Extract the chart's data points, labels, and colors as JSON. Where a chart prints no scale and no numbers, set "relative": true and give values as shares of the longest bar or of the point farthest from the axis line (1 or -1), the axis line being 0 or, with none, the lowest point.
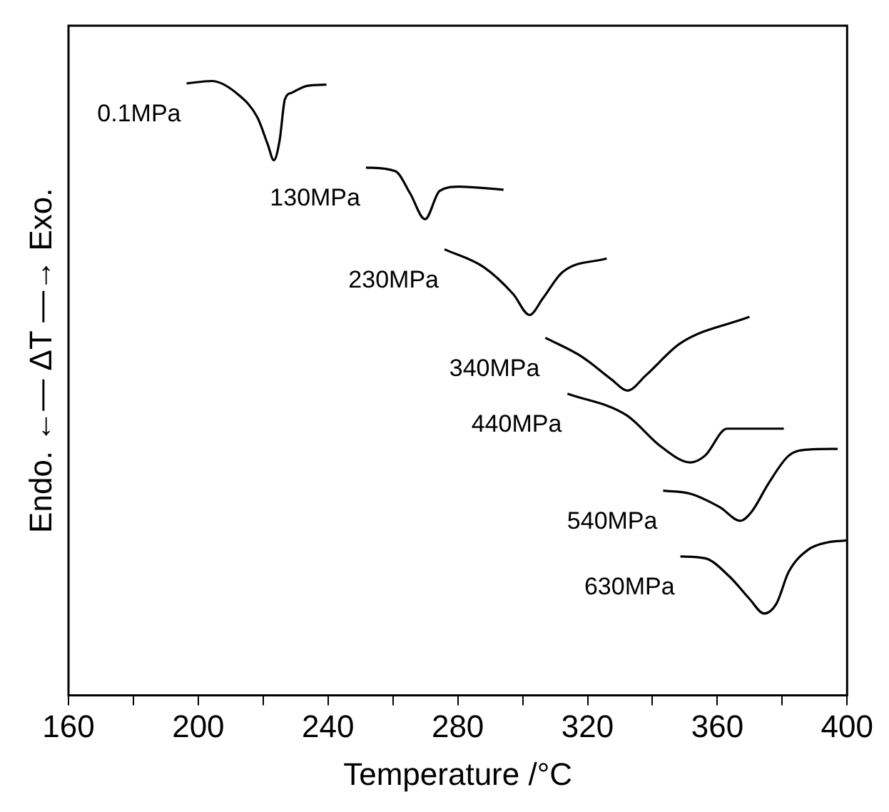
{
  "chart_data": {
    "type": "line",
    "relative": true,
    "xlabel": "Temperature /°C",
    "ylabel": "Endo. ←— ΔT —→ Exo.",
    "xlim": [
      160,
      400
    ],
    "xticks": [
      160,
      {
        "value": 180,
        "label": null
      },
      200,
      {
        "value": 220,
        "label": null
      },
      240,
      {
        "value": 260,
        "label": null
      },
      280,
      {
        "value": 300,
        "label": null
      },
      320,
      {
        "value": 340,
        "label": null
      },
      360,
      {
        "value": 380,
        "label": null
      },
      400
    ],
    "grid": false,
    "legend": false,
    "marker": "none",
    "line_style": "solid",
    "series": [
      {
        "name": "0.1MPa",
        "color": "#000000",
        "x": [
          196.4,
          204.1,
          212.3,
          218.2,
          221.4,
          223.3,
          225.1,
          226.7,
          228.9,
          233.5,
          239.5
        ],
        "values": [
          0.996,
          1.0,
          0.978,
          0.941,
          0.897,
          0.871,
          0.904,
          0.97,
          0.981,
          0.992,
          0.994
        ]
      },
      {
        "name": "130MPa",
        "color": "#000000",
        "x": [
          251.7,
          260.8,
          265.3,
          269.9,
          274.4,
          280.5,
          294.1
        ],
        "values": [
          0.859,
          0.853,
          0.817,
          0.775,
          0.821,
          0.828,
          0.823
        ]
      },
      {
        "name": "230MPa",
        "color": "#000000",
        "x": [
          275.9,
          288.0,
          297.1,
          302.1,
          306.2,
          312.3,
          325.9
        ],
        "values": [
          0.726,
          0.697,
          0.653,
          0.619,
          0.646,
          0.689,
          0.711
        ]
      },
      {
        "name": "340MPa",
        "color": "#000000",
        "x": [
          307.0,
          318.3,
          327.4,
          332.3,
          338.0,
          348.6,
          369.9
        ],
        "values": [
          0.582,
          0.551,
          0.514,
          0.496,
          0.521,
          0.573,
          0.616
        ]
      },
      {
        "name": "440MPa",
        "color": "#000000",
        "x": [
          313.8,
          332.0,
          342.6,
          351.7,
          356.2,
          363.0,
          380.5
        ],
        "values": [
          0.491,
          0.456,
          0.405,
          0.379,
          0.39,
          0.434,
          0.434
        ]
      },
      {
        "name": "540MPa",
        "color": "#000000",
        "x": [
          343.3,
          351.7,
          360.8,
          367.1,
          370.6,
          375.9,
          382.0,
          388.0,
          397.1
        ],
        "values": [
          0.333,
          0.328,
          0.306,
          0.284,
          0.299,
          0.346,
          0.39,
          0.4,
          0.401
        ]
      },
      {
        "name": "630MPa",
        "color": "#000000",
        "x": [
          348.6,
          356.2,
          363.8,
          369.9,
          374.4,
          378.2,
          382.0,
          388.0,
          394.1,
          400
        ],
        "values": [
          0.226,
          0.223,
          0.193,
          0.157,
          0.133,
          0.149,
          0.201,
          0.237,
          0.249,
          0.252
        ]
      }
    ]
  }
}
